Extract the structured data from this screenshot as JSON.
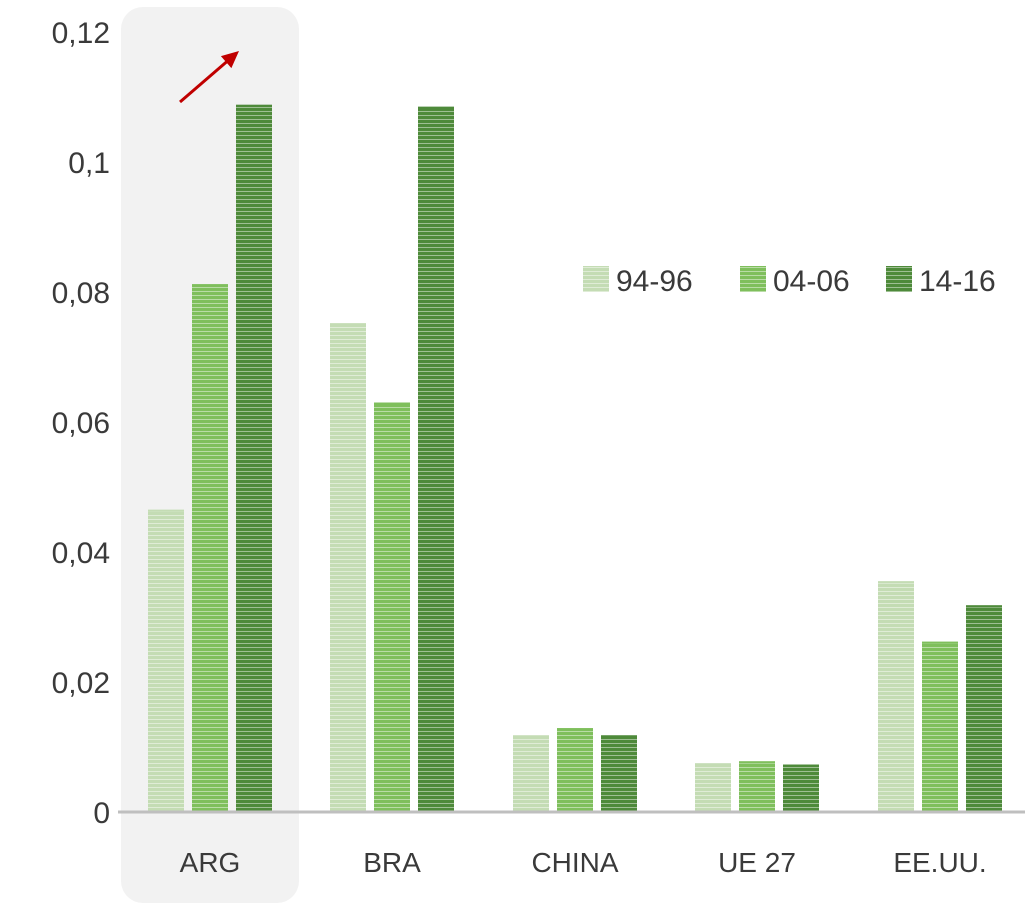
{
  "chart_data": {
    "type": "bar",
    "categories": [
      "ARG",
      "BRA",
      "CHINA",
      "UE 27",
      "EE.UU."
    ],
    "series": [
      {
        "name": "94-96",
        "color": "#c4dcb4",
        "values": [
          0.0465,
          0.0752,
          0.0118,
          0.0075,
          0.0355
        ]
      },
      {
        "name": "04-06",
        "color": "#7fbf5c",
        "values": [
          0.0812,
          0.063,
          0.0129,
          0.0078,
          0.0262
        ]
      },
      {
        "name": "14-16",
        "color": "#4e8a3a",
        "values": [
          0.1088,
          0.1085,
          0.0118,
          0.0073,
          0.0318
        ]
      }
    ],
    "yticks": [
      "0",
      "0,02",
      "0,04",
      "0,06",
      "0,08",
      "0,1",
      "0,12"
    ],
    "ylim": [
      0,
      0.12
    ],
    "title": "",
    "xlabel": "",
    "ylabel": "",
    "legend_position": "top-right",
    "highlighted_category": "ARG",
    "highlight_color": "#f2f2f2",
    "arrow_color": "#c00000",
    "axis_color": "#bfbfbf"
  }
}
